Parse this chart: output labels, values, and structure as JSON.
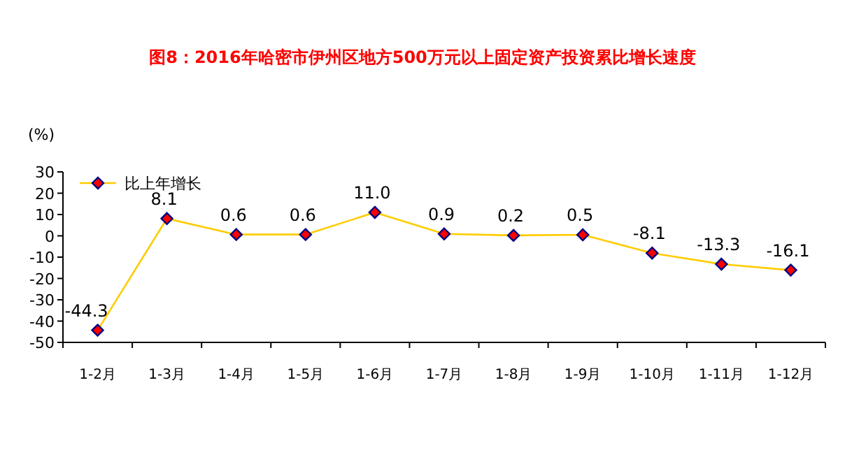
{
  "chart_data": {
    "type": "line",
    "title": "图8：2016年哈密市伊州区地方500万元以上固定资产投资累比增长速度",
    "ylabel": "(%)",
    "categories": [
      "1-2月",
      "1-3月",
      "1-4月",
      "1-5月",
      "1-6月",
      "1-7月",
      "1-8月",
      "1-9月",
      "1-10月",
      "1-11月",
      "1-12月"
    ],
    "series": [
      {
        "name": "比上年增长",
        "color": "#ffcc00",
        "values": [
          -44.3,
          8.1,
          0.6,
          0.6,
          11.0,
          0.9,
          0.2,
          0.5,
          -8.1,
          -13.3,
          -16.1
        ],
        "value_labels": [
          "-44.3",
          "8.1",
          "0.6",
          "0.6",
          "11.0",
          "0.9",
          "0.2",
          "0.5",
          "-8.1",
          "-13.3",
          "-16.1"
        ]
      }
    ],
    "ylim": [
      -50,
      30
    ],
    "yticks": [
      -50,
      -40,
      -30,
      -20,
      -10,
      0,
      10,
      20,
      30
    ],
    "grid": false,
    "legend": "top left",
    "marker": "diamond",
    "line_style": "solid"
  }
}
